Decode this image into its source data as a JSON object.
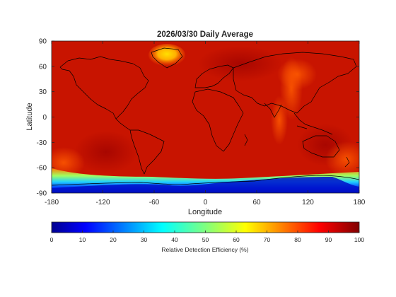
{
  "map": {
    "title": "2026/03/30 Daily Average",
    "xlabel": "Longitude",
    "ylabel": "Latitude",
    "x_ticks": [
      "-180",
      "-120",
      "-60",
      "0",
      "60",
      "120",
      "180"
    ],
    "y_ticks": [
      "90",
      "60",
      "30",
      "0",
      "-30",
      "-60",
      "-90"
    ],
    "xlim": [
      -180,
      180
    ],
    "ylim": [
      -90,
      90
    ]
  },
  "colorbar": {
    "label": "Relative Detection Efficiency (%)",
    "ticks": [
      "0",
      "10",
      "20",
      "30",
      "40",
      "50",
      "60",
      "70",
      "80",
      "90",
      "100"
    ],
    "range": [
      0,
      100
    ],
    "colormap": "jet",
    "placement": "bottom"
  },
  "colors": {
    "high_efficiency": "#c81400",
    "medium_efficiency": "#ff6a00",
    "low_efficiency": "#00008f",
    "coastline": "#000000"
  }
}
